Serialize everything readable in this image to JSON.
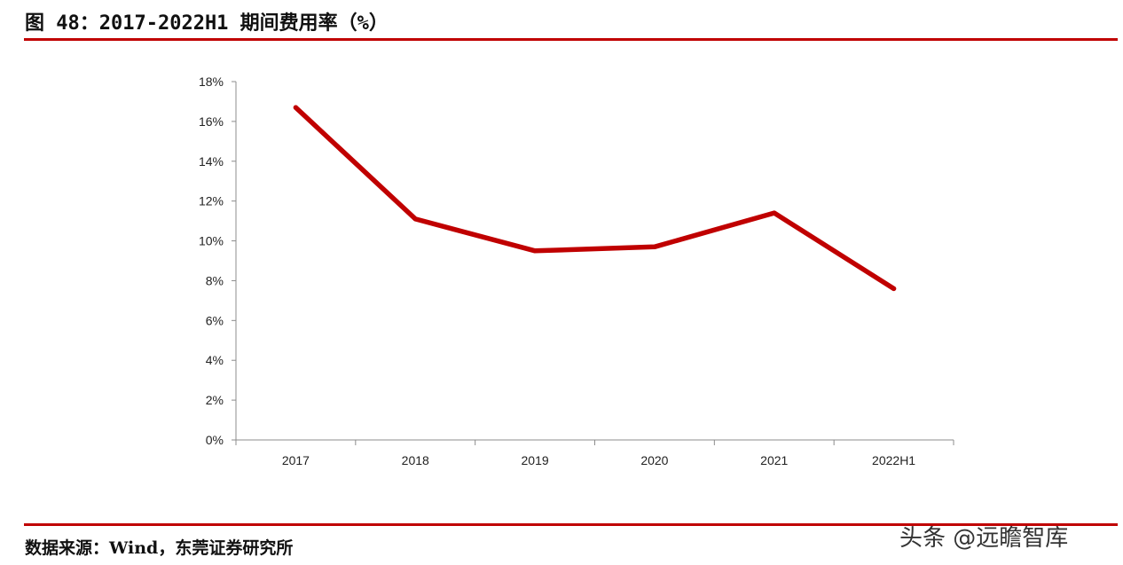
{
  "figure": {
    "title": "图 48：2017-2022H1 期间费用率（%）",
    "source": "数据来源：Wind，东莞证券研究所",
    "watermark": "头条 @远瞻智库",
    "rule_color": "#c00000"
  },
  "chart_data": {
    "type": "line",
    "title": "",
    "xlabel": "",
    "ylabel": "",
    "categories": [
      "2017",
      "2018",
      "2019",
      "2020",
      "2021",
      "2022H1"
    ],
    "series": [
      {
        "values": [
          16.7,
          11.1,
          9.5,
          9.7,
          11.4,
          7.6
        ],
        "color": "#c00000"
      }
    ],
    "ylim": [
      0,
      18
    ],
    "y_ticks": [
      0,
      2,
      4,
      6,
      8,
      10,
      12,
      14,
      16,
      18
    ],
    "y_tick_labels": [
      "0%",
      "2%",
      "4%",
      "6%",
      "8%",
      "10%",
      "12%",
      "14%",
      "16%",
      "18%"
    ],
    "grid": false,
    "legend": "none"
  }
}
